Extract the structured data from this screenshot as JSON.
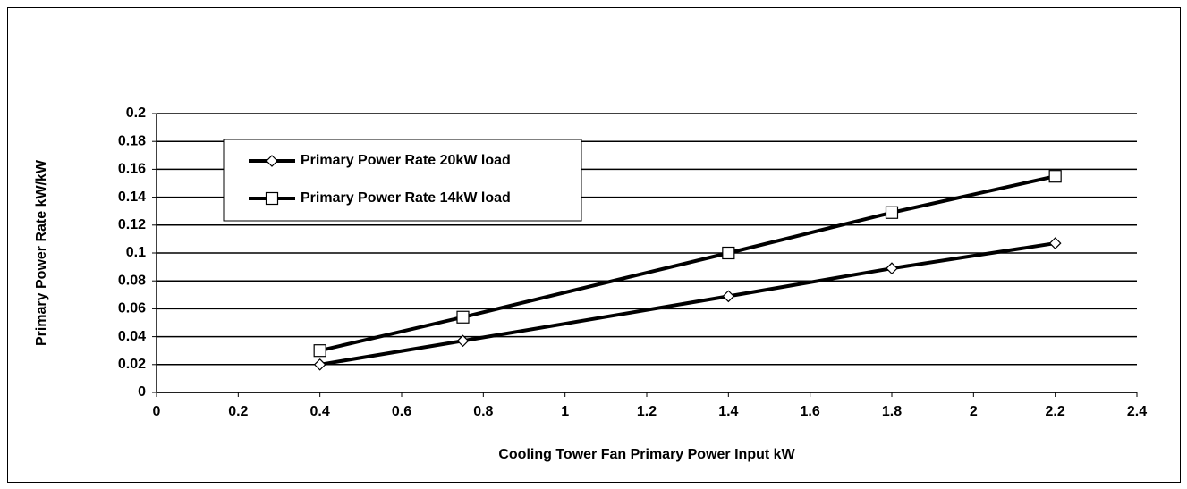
{
  "chart_data": {
    "type": "line",
    "xlabel": "Cooling Tower Fan Primary Power Input kW",
    "ylabel": "Primary Power Rate kW/kW",
    "xlim": [
      0,
      2.4
    ],
    "xticks": [
      0,
      0.2,
      0.4,
      0.6,
      0.8,
      1,
      1.2,
      1.4,
      1.6,
      1.8,
      2,
      2.2,
      2.4
    ],
    "ylim": [
      0,
      0.2
    ],
    "yticks": [
      0,
      0.02,
      0.04,
      0.06,
      0.08,
      0.1,
      0.12,
      0.14,
      0.16,
      0.18,
      0.2
    ],
    "grid": true,
    "legend": "upper left",
    "series": [
      {
        "name": "Primary Power Rate 20kW load",
        "color": "#000000",
        "marker": "diamond",
        "x": [
          0.4,
          0.75,
          1.4,
          1.8,
          2.2
        ],
        "values": [
          0.02,
          0.037,
          0.069,
          0.089,
          0.107
        ]
      },
      {
        "name": "Primary Power Rate 14kW load",
        "color": "#000000",
        "marker": "square",
        "x": [
          0.4,
          0.75,
          1.4,
          1.8,
          2.2
        ],
        "values": [
          0.03,
          0.054,
          0.1,
          0.129,
          0.155
        ]
      }
    ]
  }
}
